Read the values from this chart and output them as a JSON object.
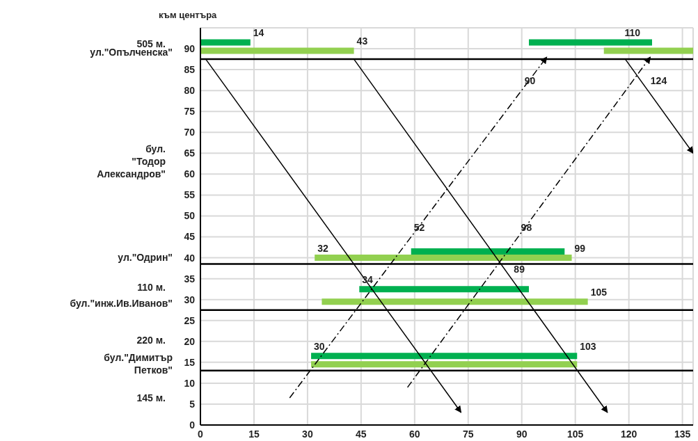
{
  "chart_data": {
    "type": "line",
    "ylabel": "към центъра",
    "xlim": [
      0,
      138
    ],
    "xticks": [
      0,
      15,
      30,
      45,
      60,
      75,
      90,
      105,
      120,
      135
    ],
    "ylim": [
      0,
      95
    ],
    "yticks": [
      0,
      5,
      10,
      15,
      20,
      25,
      30,
      35,
      40,
      45,
      50,
      55,
      60,
      65,
      70,
      75,
      80,
      85,
      90
    ],
    "grid": true,
    "series": [
      {
        "color": "#00b050",
        "x": [
          0,
          14
        ],
        "values": [
          91.5,
          91.5
        ]
      },
      {
        "color": "#00b050",
        "x": [
          92,
          126.5
        ],
        "values": [
          91.5,
          91.5
        ]
      },
      {
        "color": "#00b050",
        "x": [
          59,
          102
        ],
        "values": [
          41.5,
          41.5
        ]
      },
      {
        "color": "#00b050",
        "x": [
          44.5,
          92
        ],
        "values": [
          32.5,
          32.5
        ]
      },
      {
        "color": "#00b050",
        "x": [
          31,
          105.5
        ],
        "values": [
          16.5,
          16.5
        ]
      },
      {
        "color": "#92d050",
        "x": [
          0,
          43
        ],
        "values": [
          89.5,
          89.5
        ]
      },
      {
        "color": "#92d050",
        "x": [
          113,
          138
        ],
        "values": [
          89.5,
          89.5
        ]
      },
      {
        "color": "#92d050",
        "x": [
          32,
          104
        ],
        "values": [
          40,
          40
        ]
      },
      {
        "color": "#92d050",
        "x": [
          34,
          108.5
        ],
        "values": [
          29.5,
          29.5
        ]
      },
      {
        "color": "#92d050",
        "x": [
          31,
          105.5
        ],
        "values": [
          14.5,
          14.5
        ]
      },
      {
        "color": "#000000",
        "line_style": "solid",
        "x": [
          1.5,
          73
        ],
        "values": [
          87.5,
          3
        ]
      },
      {
        "color": "#000000",
        "line_style": "solid",
        "x": [
          43,
          114
        ],
        "values": [
          87.5,
          3
        ]
      },
      {
        "color": "#000000",
        "line_style": "solid",
        "x": [
          119,
          138
        ],
        "values": [
          87.5,
          65
        ]
      },
      {
        "color": "#000000",
        "line_style": "dashed",
        "x": [
          25,
          97
        ],
        "values": [
          6.5,
          88
        ]
      },
      {
        "color": "#000000",
        "line_style": "dashed",
        "x": [
          58,
          126
        ],
        "values": [
          9,
          88
        ]
      }
    ],
    "ref_lines": [
      {
        "axis": "y",
        "value": 87.5,
        "label": "ул.\"Опълченска\"",
        "color": "#000000"
      },
      {
        "axis": "y",
        "value": 38.5,
        "label": "ул.\"Одрин\"",
        "color": "#000000"
      },
      {
        "axis": "y",
        "value": 27.5,
        "label": "бул.\"инж.Ив.Иванов\"",
        "color": "#000000"
      },
      {
        "axis": "y",
        "value": 13,
        "label": "бул.\"Димитър Петков\"",
        "color": "#000000"
      }
    ],
    "annotations": [
      "505 м.",
      "бул. \"Тодор Александров\"",
      "110 м.",
      "220 м.",
      "145 м.",
      {
        "text": "14",
        "x": 14,
        "y": 91.5
      },
      {
        "text": "43",
        "x": 43,
        "y": 89.5
      },
      {
        "text": "110",
        "x": 118,
        "y": 91.5
      },
      {
        "text": "90",
        "x": 90,
        "y": 80
      },
      {
        "text": "124",
        "x": 125.3,
        "y": 80
      },
      {
        "text": "32",
        "x": 32,
        "y": 40
      },
      {
        "text": "52",
        "x": 59,
        "y": 45
      },
      {
        "text": "98",
        "x": 89,
        "y": 45
      },
      {
        "text": "99",
        "x": 104,
        "y": 40
      },
      {
        "text": "34",
        "x": 44.5,
        "y": 32.5
      },
      {
        "text": "89",
        "x": 87,
        "y": 35
      },
      {
        "text": "105",
        "x": 108.5,
        "y": 29.5
      },
      {
        "text": "30",
        "x": 31,
        "y": 16.5
      },
      {
        "text": "103",
        "x": 105.5,
        "y": 16.5
      }
    ]
  }
}
